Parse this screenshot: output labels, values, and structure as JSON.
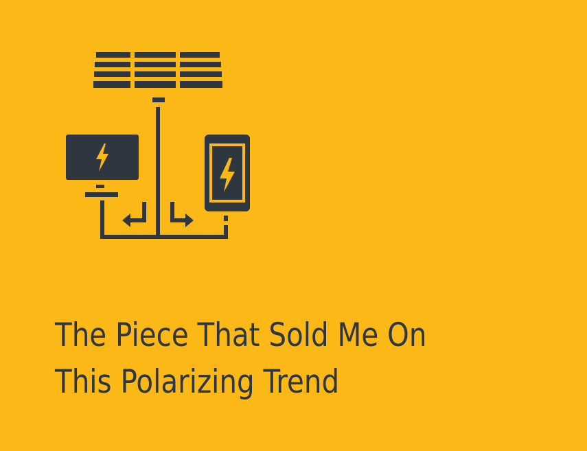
{
  "colors": {
    "background": "#FBB817",
    "ink": "#2E3640"
  },
  "illustration": {
    "icon": "solar-panel-charging-devices-icon",
    "parts": [
      "solar-panel-icon",
      "monitor-lightning-icon",
      "phone-lightning-icon",
      "arrow-left-icon",
      "arrow-right-icon"
    ]
  },
  "headline": {
    "line1": "The Piece That Sold Me On",
    "line2": "This Polarizing Trend"
  }
}
